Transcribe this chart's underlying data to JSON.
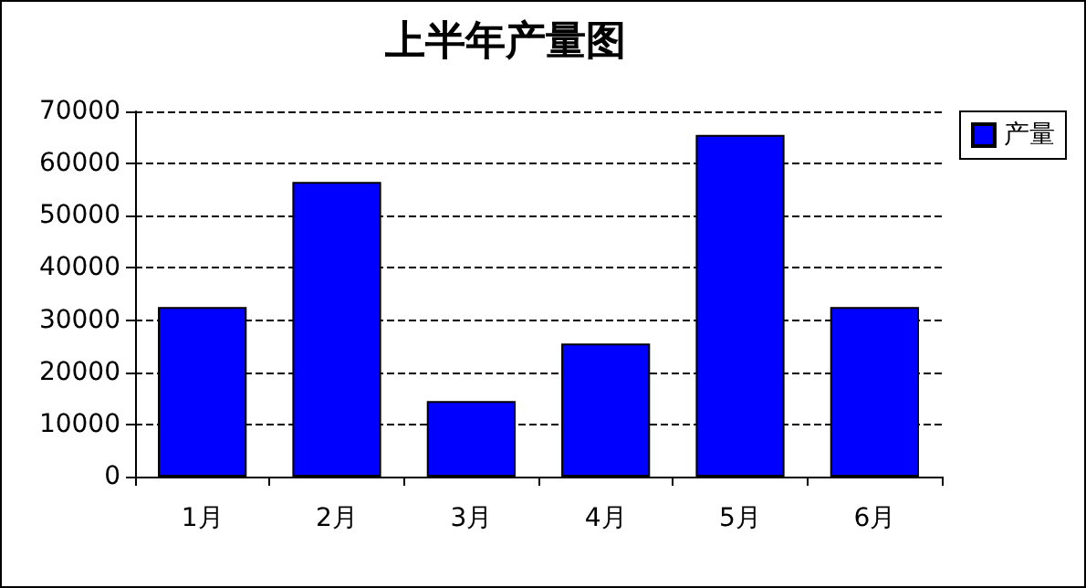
{
  "chart_data": {
    "type": "bar",
    "title": "上半年产量图",
    "categories": [
      "1月",
      "2月",
      "3月",
      "4月",
      "5月",
      "6月"
    ],
    "series": [
      {
        "name": "产量",
        "color": "#0000ff",
        "values": [
          32500,
          56500,
          14500,
          25500,
          65500,
          32500
        ]
      }
    ],
    "ylim": [
      0,
      70000
    ],
    "yticks": [
      0,
      10000,
      20000,
      30000,
      40000,
      50000,
      60000,
      70000
    ],
    "grid": "y",
    "legend": "right"
  }
}
